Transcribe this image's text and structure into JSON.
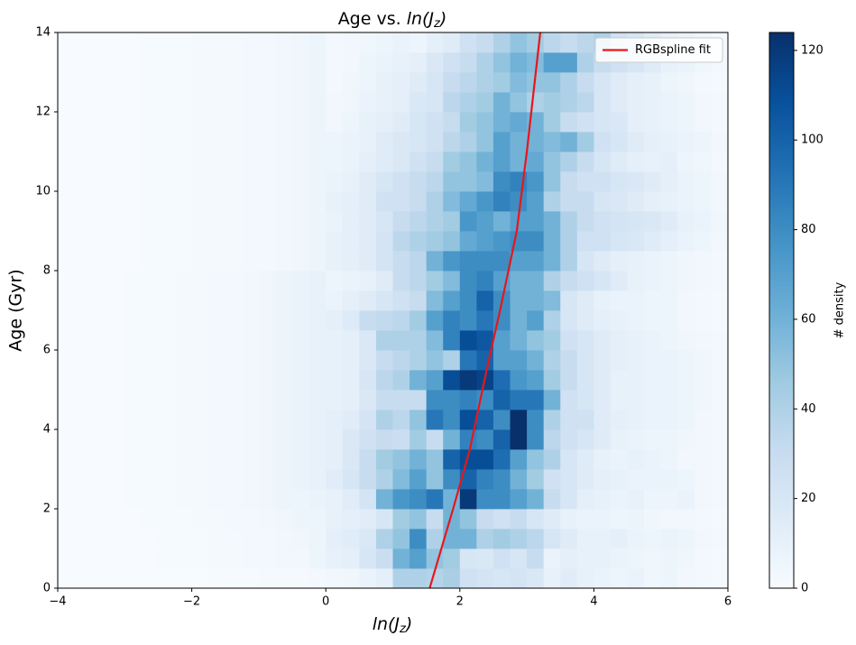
{
  "chart_data": {
    "type": "heatmap",
    "title": [
      "Age vs. ",
      "ln(J",
      "z",
      ")"
    ],
    "xlabel": [
      "ln(J",
      "z",
      ")"
    ],
    "ylabel": "Age (Gyr)",
    "colorbar_label": "# density",
    "cmap": "Blues",
    "clim": [
      0,
      124
    ],
    "cticks": [
      0,
      20,
      40,
      60,
      80,
      100,
      120
    ],
    "xlim": [
      -4,
      6
    ],
    "ylim": [
      0,
      14
    ],
    "xticks": [
      {
        "value": -4,
        "label": "−4"
      },
      {
        "value": -2,
        "label": "−2"
      },
      0,
      2,
      4,
      6
    ],
    "yticks": [
      0,
      2,
      4,
      6,
      8,
      10,
      12,
      14
    ],
    "legend": "upper right",
    "x_edges": [
      -4,
      -3.75,
      -3.5,
      -3.25,
      -3,
      -2.75,
      -2.5,
      -2.25,
      -2,
      -1.75,
      -1.5,
      -1.25,
      -1,
      -0.75,
      -0.5,
      -0.25,
      0,
      0.25,
      0.5,
      0.75,
      1,
      1.25,
      1.5,
      1.75,
      2,
      2.25,
      2.5,
      2.75,
      3,
      3.25,
      3.5,
      3.75,
      4,
      4.25,
      4.5,
      4.75,
      5,
      5.25,
      5.5,
      5.75,
      6
    ],
    "y_edges": [
      0,
      0.5,
      1,
      1.5,
      2,
      2.5,
      3,
      3.5,
      4,
      4.5,
      5,
      5.5,
      6,
      6.5,
      7,
      7.5,
      8,
      8.5,
      9,
      9.5,
      10,
      10.5,
      11,
      11.5,
      12,
      12.5,
      13,
      13.5,
      14
    ],
    "z": [
      [
        0,
        0,
        0,
        0,
        0,
        0,
        0,
        0,
        0,
        1,
        1,
        1,
        2,
        2,
        2,
        3,
        4,
        5,
        8,
        12,
        40,
        40,
        38,
        42,
        25,
        22,
        20,
        22,
        18,
        10,
        14,
        10,
        8,
        6,
        8,
        5,
        6,
        4,
        3,
        2
      ],
      [
        0,
        0,
        0,
        0,
        0,
        0,
        1,
        1,
        1,
        2,
        2,
        3,
        3,
        4,
        4,
        6,
        10,
        12,
        20,
        28,
        60,
        70,
        50,
        45,
        20,
        18,
        25,
        20,
        30,
        8,
        12,
        10,
        10,
        8,
        6,
        5,
        6,
        5,
        3,
        2
      ],
      [
        0,
        0,
        0,
        0,
        0,
        0,
        1,
        1,
        1,
        2,
        2,
        3,
        3,
        4,
        5,
        6,
        12,
        14,
        18,
        40,
        50,
        80,
        40,
        60,
        60,
        40,
        45,
        40,
        35,
        20,
        15,
        10,
        10,
        12,
        8,
        6,
        8,
        6,
        4,
        3
      ],
      [
        0,
        0,
        0,
        0,
        0,
        1,
        1,
        1,
        2,
        2,
        3,
        3,
        4,
        5,
        6,
        6,
        10,
        12,
        14,
        20,
        45,
        50,
        30,
        60,
        50,
        30,
        25,
        30,
        20,
        15,
        10,
        8,
        8,
        6,
        7,
        5,
        4,
        4,
        3,
        2
      ],
      [
        0,
        0,
        0,
        0,
        1,
        1,
        1,
        2,
        2,
        3,
        3,
        4,
        5,
        6,
        6,
        8,
        10,
        14,
        22,
        60,
        75,
        80,
        90,
        60,
        120,
        80,
        80,
        70,
        60,
        30,
        20,
        12,
        10,
        8,
        10,
        6,
        6,
        8,
        4,
        3
      ],
      [
        0,
        0,
        0,
        0,
        1,
        1,
        1,
        2,
        2,
        3,
        3,
        4,
        5,
        6,
        8,
        10,
        14,
        20,
        30,
        40,
        55,
        70,
        50,
        80,
        100,
        85,
        80,
        60,
        45,
        25,
        20,
        15,
        12,
        10,
        8,
        8,
        8,
        6,
        4,
        3
      ],
      [
        0,
        0,
        0,
        0,
        1,
        1,
        1,
        2,
        2,
        3,
        3,
        4,
        5,
        6,
        8,
        10,
        12,
        18,
        30,
        45,
        50,
        60,
        50,
        100,
        110,
        110,
        95,
        70,
        50,
        40,
        20,
        15,
        10,
        8,
        10,
        8,
        6,
        4,
        4,
        3
      ],
      [
        0,
        0,
        0,
        0,
        1,
        1,
        1,
        2,
        2,
        3,
        3,
        4,
        5,
        6,
        8,
        10,
        12,
        18,
        25,
        30,
        28,
        45,
        30,
        60,
        85,
        80,
        100,
        124,
        80,
        35,
        25,
        20,
        15,
        10,
        8,
        6,
        6,
        5,
        4,
        3
      ],
      [
        0,
        0,
        0,
        0,
        1,
        1,
        1,
        2,
        2,
        3,
        3,
        4,
        5,
        6,
        8,
        10,
        12,
        14,
        22,
        40,
        35,
        50,
        90,
        80,
        110,
        100,
        80,
        124,
        80,
        40,
        25,
        25,
        15,
        12,
        10,
        8,
        8,
        6,
        4,
        3
      ],
      [
        0,
        0,
        0,
        0,
        1,
        1,
        1,
        2,
        2,
        3,
        3,
        4,
        5,
        6,
        8,
        10,
        10,
        12,
        18,
        30,
        30,
        30,
        80,
        80,
        85,
        80,
        100,
        90,
        90,
        60,
        25,
        20,
        15,
        10,
        10,
        8,
        8,
        6,
        5,
        3
      ],
      [
        0,
        0,
        0,
        0,
        1,
        1,
        1,
        2,
        2,
        3,
        3,
        4,
        5,
        6,
        8,
        10,
        10,
        12,
        20,
        35,
        40,
        60,
        70,
        110,
        120,
        115,
        95,
        75,
        70,
        45,
        30,
        20,
        15,
        10,
        10,
        8,
        8,
        6,
        5,
        3
      ],
      [
        0,
        0,
        0,
        0,
        1,
        1,
        1,
        2,
        2,
        3,
        3,
        4,
        5,
        6,
        8,
        10,
        10,
        12,
        18,
        30,
        35,
        40,
        50,
        40,
        90,
        100,
        70,
        70,
        60,
        40,
        30,
        20,
        15,
        12,
        10,
        8,
        8,
        6,
        5,
        3
      ],
      [
        0,
        0,
        0,
        0,
        1,
        1,
        1,
        2,
        2,
        3,
        3,
        4,
        5,
        6,
        8,
        10,
        10,
        12,
        18,
        40,
        40,
        40,
        55,
        85,
        110,
        105,
        70,
        60,
        50,
        45,
        25,
        20,
        15,
        12,
        10,
        8,
        6,
        5,
        4,
        3
      ],
      [
        0,
        0,
        0,
        0,
        1,
        1,
        1,
        2,
        2,
        3,
        3,
        4,
        5,
        6,
        8,
        10,
        12,
        16,
        30,
        32,
        35,
        45,
        70,
        85,
        80,
        90,
        80,
        60,
        70,
        40,
        20,
        15,
        12,
        10,
        8,
        6,
        6,
        4,
        3,
        2
      ],
      [
        0,
        0,
        0,
        0,
        1,
        1,
        1,
        2,
        2,
        3,
        3,
        4,
        5,
        6,
        8,
        10,
        8,
        12,
        15,
        20,
        25,
        30,
        55,
        70,
        80,
        100,
        80,
        60,
        60,
        55,
        20,
        15,
        10,
        8,
        8,
        6,
        6,
        4,
        3,
        2
      ],
      [
        0,
        0,
        0,
        0,
        1,
        1,
        1,
        2,
        2,
        3,
        3,
        4,
        5,
        6,
        8,
        10,
        6,
        8,
        10,
        15,
        30,
        35,
        45,
        55,
        80,
        85,
        70,
        60,
        60,
        40,
        30,
        25,
        20,
        15,
        10,
        8,
        6,
        5,
        4,
        3
      ],
      [
        0,
        0,
        0,
        0,
        0,
        1,
        1,
        1,
        2,
        2,
        2,
        3,
        3,
        4,
        5,
        6,
        10,
        12,
        15,
        22,
        30,
        35,
        60,
        75,
        80,
        80,
        80,
        70,
        70,
        60,
        40,
        20,
        15,
        12,
        10,
        8,
        6,
        5,
        4,
        3
      ],
      [
        0,
        0,
        0,
        0,
        0,
        1,
        1,
        1,
        2,
        2,
        2,
        3,
        3,
        4,
        5,
        6,
        10,
        12,
        15,
        22,
        35,
        40,
        45,
        50,
        65,
        70,
        75,
        80,
        80,
        60,
        40,
        25,
        25,
        20,
        18,
        15,
        12,
        8,
        6,
        4
      ],
      [
        0,
        0,
        0,
        0,
        0,
        1,
        1,
        1,
        2,
        2,
        2,
        3,
        3,
        4,
        5,
        6,
        8,
        12,
        15,
        20,
        30,
        35,
        40,
        45,
        75,
        70,
        60,
        70,
        70,
        60,
        40,
        30,
        25,
        22,
        20,
        18,
        15,
        10,
        8,
        5
      ],
      [
        0,
        0,
        0,
        0,
        0,
        1,
        1,
        1,
        2,
        2,
        2,
        3,
        3,
        4,
        5,
        6,
        10,
        12,
        15,
        25,
        25,
        30,
        40,
        55,
        65,
        75,
        85,
        80,
        70,
        40,
        30,
        30,
        20,
        18,
        15,
        12,
        10,
        8,
        6,
        4
      ],
      [
        0,
        0,
        0,
        0,
        0,
        1,
        1,
        1,
        2,
        2,
        2,
        3,
        3,
        4,
        5,
        6,
        8,
        10,
        15,
        20,
        25,
        30,
        35,
        50,
        50,
        55,
        80,
        85,
        75,
        50,
        30,
        25,
        25,
        20,
        18,
        15,
        12,
        8,
        6,
        4
      ],
      [
        0,
        0,
        0,
        0,
        0,
        1,
        1,
        1,
        2,
        2,
        2,
        3,
        3,
        4,
        5,
        6,
        6,
        8,
        12,
        15,
        18,
        25,
        30,
        45,
        50,
        60,
        70,
        60,
        65,
        50,
        40,
        30,
        20,
        15,
        12,
        10,
        12,
        6,
        5,
        3
      ],
      [
        0,
        0,
        0,
        0,
        0,
        1,
        1,
        1,
        2,
        2,
        2,
        3,
        3,
        4,
        5,
        6,
        6,
        8,
        10,
        15,
        18,
        20,
        25,
        35,
        40,
        50,
        70,
        60,
        60,
        55,
        60,
        45,
        25,
        20,
        15,
        12,
        10,
        8,
        6,
        4
      ],
      [
        0,
        0,
        0,
        0,
        0,
        1,
        1,
        1,
        2,
        2,
        2,
        3,
        3,
        4,
        5,
        6,
        4,
        6,
        10,
        12,
        15,
        20,
        25,
        30,
        45,
        50,
        60,
        65,
        60,
        45,
        30,
        25,
        20,
        18,
        12,
        10,
        8,
        6,
        4,
        3
      ],
      [
        0,
        0,
        0,
        0,
        0,
        1,
        1,
        1,
        2,
        2,
        2,
        3,
        3,
        4,
        5,
        6,
        4,
        5,
        8,
        10,
        12,
        18,
        20,
        35,
        40,
        45,
        60,
        50,
        40,
        45,
        40,
        35,
        20,
        15,
        12,
        10,
        8,
        6,
        4,
        3
      ],
      [
        0,
        0,
        0,
        0,
        0,
        1,
        1,
        1,
        2,
        2,
        2,
        3,
        3,
        4,
        5,
        6,
        3,
        5,
        6,
        10,
        12,
        15,
        20,
        30,
        35,
        40,
        45,
        55,
        50,
        50,
        40,
        30,
        20,
        15,
        12,
        10,
        6,
        5,
        3,
        2
      ],
      [
        0,
        0,
        0,
        0,
        0,
        1,
        1,
        1,
        2,
        2,
        2,
        3,
        3,
        4,
        5,
        6,
        3,
        4,
        6,
        8,
        10,
        12,
        18,
        25,
        30,
        40,
        50,
        60,
        55,
        70,
        70,
        40,
        30,
        25,
        20,
        15,
        10,
        8,
        5,
        3
      ],
      [
        0,
        0,
        0,
        0,
        0,
        1,
        1,
        1,
        2,
        2,
        2,
        3,
        3,
        4,
        5,
        6,
        3,
        4,
        5,
        6,
        8,
        6,
        12,
        15,
        25,
        30,
        40,
        50,
        45,
        35,
        30,
        35,
        40,
        25,
        20,
        15,
        10,
        8,
        5,
        3
      ]
    ],
    "series": [
      {
        "name": "RGBspline fit",
        "color": "#e8161b",
        "x": [
          1.55,
          1.9,
          2.15,
          2.4,
          2.6,
          2.85,
          3.0,
          3.1,
          3.2
        ],
        "values": [
          0,
          2,
          3.5,
          5.5,
          7,
          9,
          11,
          12.5,
          14
        ]
      }
    ]
  }
}
